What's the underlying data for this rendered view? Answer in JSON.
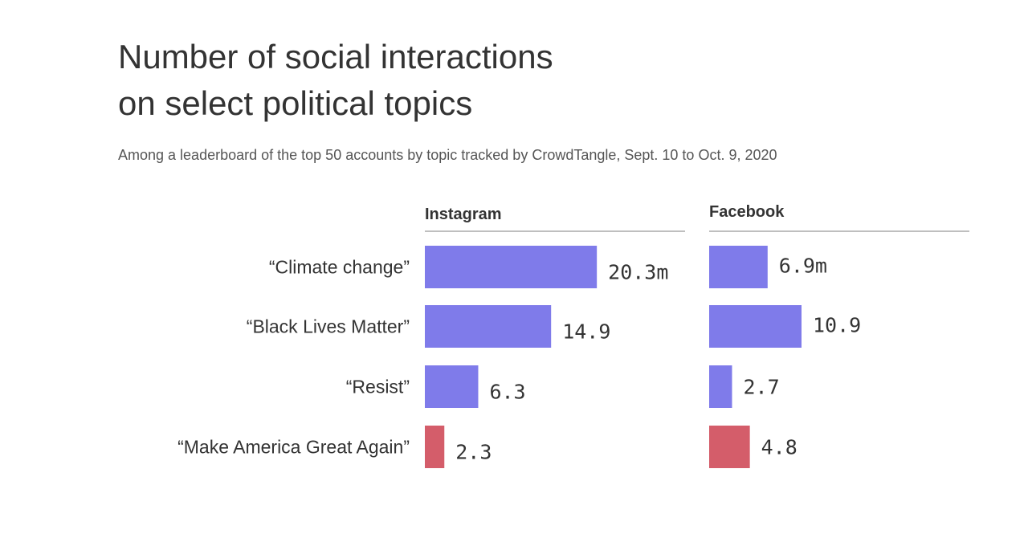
{
  "chart_data": {
    "type": "bar",
    "orientation": "horizontal",
    "title": [
      "Number of social interactions",
      "on select political topics"
    ],
    "subtitle": "Among a leaderboard of the top 50 accounts by topic tracked by CrowdTangle, Sept. 10 to Oct. 9, 2020",
    "categories": [
      "“Climate change”",
      "“Black Lives Matter”",
      "“Resist”",
      "“Make America Great Again”"
    ],
    "colors": {
      "default": "#7f7bea",
      "highlight": "#d45d6a",
      "axis_line": "#aaaaaa",
      "text": "#333333"
    },
    "highlight_category_index": 3,
    "panels": [
      {
        "name": "Instagram",
        "values": [
          20.3,
          14.9,
          6.3,
          2.3
        ],
        "value_labels": [
          "20.3m",
          "14.9",
          "6.3",
          "2.3"
        ]
      },
      {
        "name": "Facebook",
        "values": [
          6.9,
          10.9,
          2.7,
          4.8
        ],
        "value_labels": [
          "6.9m",
          "10.9",
          "2.7",
          "4.8"
        ]
      }
    ]
  }
}
